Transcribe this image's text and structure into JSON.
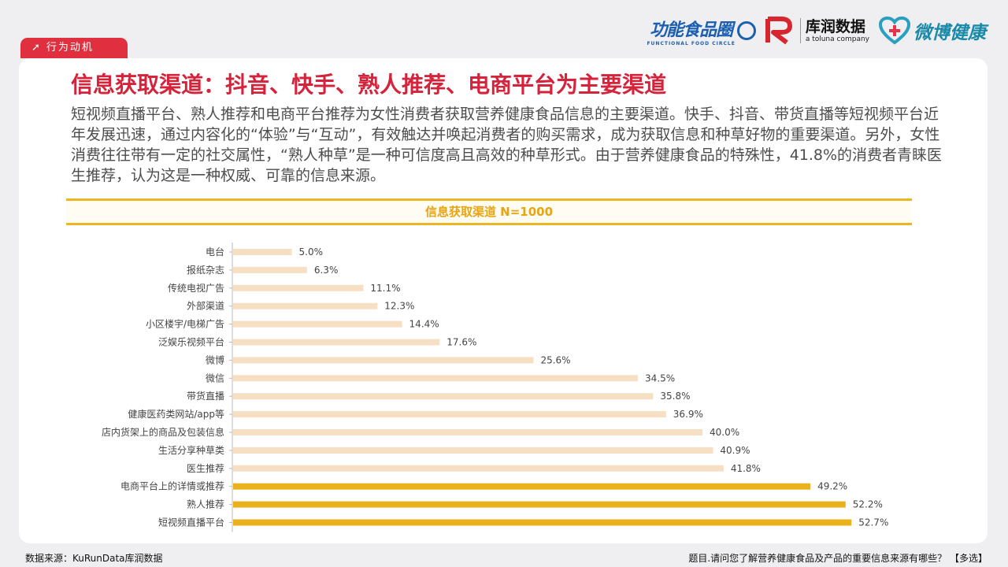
{
  "header": {
    "section_tag": "行为动机",
    "logos": {
      "functional_food": "功能食品圈",
      "functional_food_en": "FUNCTIONAL FOOD CIRCLE",
      "kurun": "库润数据",
      "kurun_en": "a toluna company",
      "weibo_health": "微博健康"
    }
  },
  "title": "信息获取渠道：抖音、快手、熟人推荐、电商平台为主要渠道",
  "description": "短视频直播平台、熟人推荐和电商平台推荐为女性消费者获取营养健康食品信息的主要渠道。快手、抖音、带货直播等短视频平台近年发展迅速，通过内容化的“体验”与“互动”，有效触达并唤起消费者的购买需求，成为获取信息和种草好物的重要渠道。另外，女性消费往往带有一定的社交属性，“熟人种草”是一种可信度高且高效的种草形式。由于营养健康食品的特殊性，41.8%的消费者青睐医生推荐，认为这是一种权威、可靠的信息来源。",
  "chart_data": {
    "type": "bar",
    "orientation": "horizontal",
    "title": "信息获取渠道 N=1000",
    "categories": [
      "电台",
      "报纸杂志",
      "传统电视广告",
      "外部渠道",
      "小区楼宇/电梯广告",
      "泛娱乐视频平台",
      "微博",
      "微信",
      "带货直播",
      "健康医药类网站/app等",
      "店内货架上的商品及包装信息",
      "生活分享种草类",
      "医生推荐",
      "电商平台上的详情或推荐",
      "熟人推荐",
      "短视频直播平台"
    ],
    "values": [
      5.0,
      6.3,
      11.1,
      12.3,
      14.4,
      17.6,
      25.6,
      34.5,
      35.8,
      36.9,
      40.0,
      40.9,
      41.8,
      49.2,
      52.2,
      52.7
    ],
    "value_labels": [
      "5.0%",
      "6.3%",
      "11.1%",
      "12.3%",
      "14.4%",
      "17.6%",
      "25.6%",
      "34.5%",
      "35.8%",
      "36.9%",
      "40.0%",
      "40.9%",
      "41.8%",
      "49.2%",
      "52.2%",
      "52.7%"
    ],
    "highlight": [
      false,
      false,
      false,
      false,
      false,
      false,
      false,
      false,
      false,
      false,
      false,
      false,
      false,
      true,
      true,
      true
    ],
    "unit": "%",
    "xlim": [
      0,
      60
    ],
    "grid": false,
    "colors": {
      "normal": "#f6dfc2",
      "highlight": "#e9b21c",
      "axis": "#bbbbbb",
      "label": "#444444"
    }
  },
  "footer": {
    "source": "数据来源：KuRunData库润数据",
    "question": "题目.请问您了解营养健康食品及产品的重要信息来源有哪些？  【多选】"
  }
}
